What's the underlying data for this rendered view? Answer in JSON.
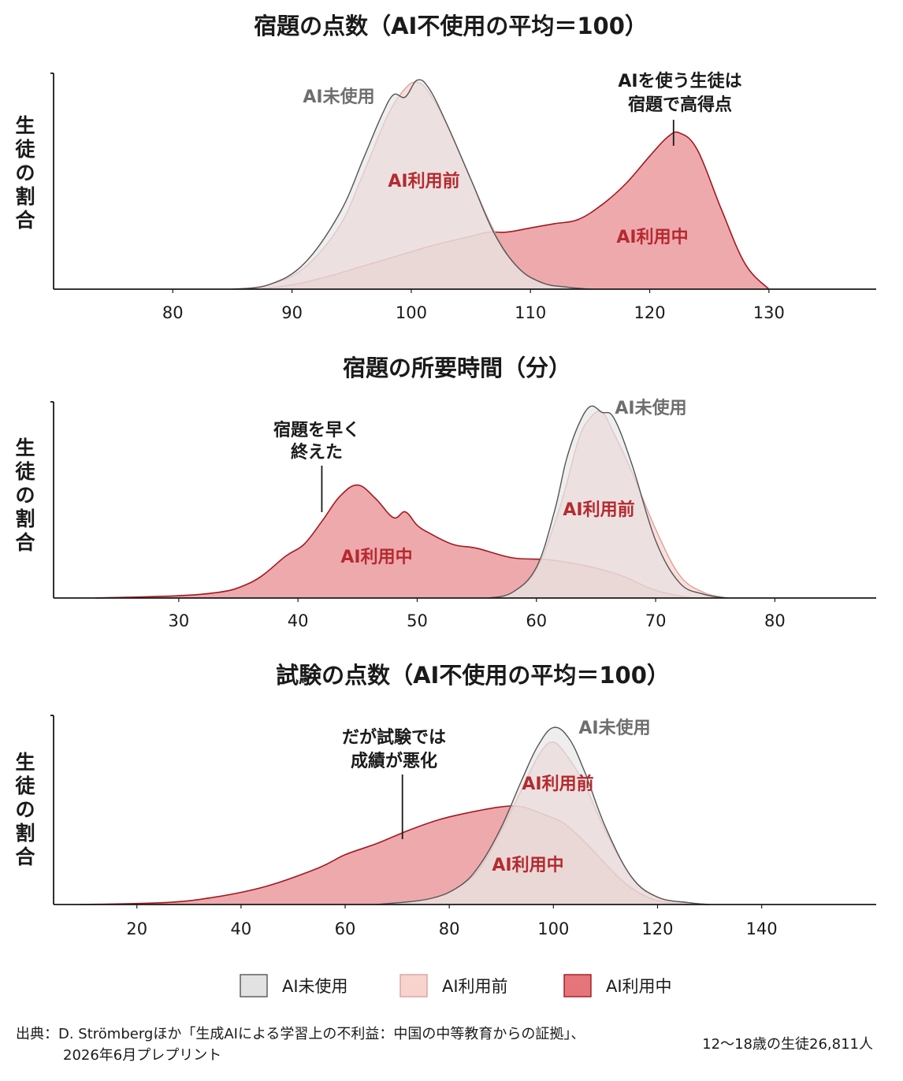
{
  "chart_data": [
    {
      "type": "area",
      "title": "宿題の点数（AI不使用の平均＝100）",
      "ylabel": "生徒の割合",
      "xlim": [
        70,
        139
      ],
      "xticks": [
        80,
        90,
        100,
        110,
        120,
        130
      ],
      "series": [
        {
          "key": "none",
          "name": "AI未使用",
          "label_text": "AI未使用",
          "x": [
            85,
            88,
            91,
            94,
            96,
            97.5,
            98.5,
            99.5,
            100.5,
            101.5,
            103,
            105,
            107,
            109,
            111,
            113,
            115
          ],
          "y": [
            0,
            0.02,
            0.12,
            0.36,
            0.62,
            0.82,
            0.92,
            0.91,
            0.99,
            0.95,
            0.78,
            0.52,
            0.26,
            0.1,
            0.03,
            0.01,
            0
          ]
        },
        {
          "key": "before",
          "name": "AI利用前",
          "label_text": "AI利用前",
          "x": [
            85,
            88,
            91,
            94,
            96,
            98,
            99.5,
            100.5,
            101.5,
            103,
            105,
            107,
            109,
            111,
            113,
            115
          ],
          "y": [
            0,
            0.02,
            0.1,
            0.3,
            0.55,
            0.82,
            0.95,
            0.98,
            0.93,
            0.78,
            0.52,
            0.27,
            0.1,
            0.03,
            0.01,
            0
          ]
        },
        {
          "key": "during",
          "name": "AI利用中",
          "label_text": "AI利用中",
          "x": [
            87,
            90,
            93,
            96,
            99,
            102,
            105,
            106.5,
            108,
            110,
            112,
            114,
            116,
            118,
            120,
            121.5,
            122.5,
            124,
            126,
            128,
            130
          ],
          "y": [
            0,
            0.02,
            0.06,
            0.11,
            0.16,
            0.21,
            0.25,
            0.27,
            0.27,
            0.29,
            0.31,
            0.33,
            0.4,
            0.5,
            0.63,
            0.72,
            0.74,
            0.66,
            0.38,
            0.12,
            0
          ]
        }
      ],
      "annotation": {
        "lines": [
          "AIを使う生徒は",
          "宿題で高得点"
        ],
        "x": 122
      }
    },
    {
      "type": "area",
      "title": "宿題の所要時間（分）",
      "ylabel": "生徒の割合",
      "xlim": [
        19.5,
        88.5
      ],
      "xticks": [
        30,
        40,
        50,
        60,
        70,
        80
      ],
      "series": [
        {
          "key": "none",
          "name": "AI未使用",
          "label_text": "AI未使用",
          "x": [
            56,
            58,
            60,
            61.5,
            62.5,
            63.5,
            64.5,
            65.5,
            66.5,
            68,
            70,
            72,
            74,
            76
          ],
          "y": [
            0,
            0.03,
            0.16,
            0.45,
            0.72,
            0.9,
            1.0,
            0.97,
            0.94,
            0.7,
            0.3,
            0.08,
            0.02,
            0
          ]
        },
        {
          "key": "before",
          "name": "AI利用前",
          "label_text": "AI利用前",
          "x": [
            56,
            58,
            60,
            62,
            63.5,
            64.5,
            65.5,
            66.5,
            68,
            70,
            72,
            74,
            76
          ],
          "y": [
            0,
            0.03,
            0.15,
            0.48,
            0.82,
            0.94,
            0.97,
            0.86,
            0.66,
            0.36,
            0.12,
            0.03,
            0
          ]
        },
        {
          "key": "during",
          "name": "AI利用中",
          "label_text": "AI利用中",
          "x": [
            23,
            32,
            36,
            39,
            40.5,
            42,
            43.5,
            45,
            46.5,
            48,
            49,
            50,
            51,
            53,
            55,
            58,
            61,
            64,
            67,
            70,
            73
          ],
          "y": [
            0,
            0.02,
            0.08,
            0.22,
            0.28,
            0.4,
            0.53,
            0.59,
            0.52,
            0.42,
            0.45,
            0.38,
            0.34,
            0.28,
            0.26,
            0.21,
            0.2,
            0.17,
            0.12,
            0.04,
            0
          ]
        }
      ],
      "annotation": {
        "lines": [
          "宿題を早く",
          "終えた"
        ],
        "x": 42
      }
    },
    {
      "type": "area",
      "title": "試験の点数（AI不使用の平均＝100）",
      "ylabel": "生徒の割合",
      "xlim": [
        4,
        162
      ],
      "xticks": [
        20,
        40,
        60,
        80,
        100,
        120,
        140
      ],
      "series": [
        {
          "key": "none",
          "name": "AI未使用",
          "label_text": "AI未使用",
          "x": [
            66,
            76,
            82,
            86,
            90,
            94,
            97,
            100,
            103,
            106,
            110,
            115,
            120,
            126,
            130
          ],
          "y": [
            0,
            0.03,
            0.1,
            0.22,
            0.42,
            0.68,
            0.86,
            0.96,
            0.9,
            0.72,
            0.42,
            0.15,
            0.04,
            0.01,
            0
          ]
        },
        {
          "key": "before",
          "name": "AI利用前",
          "label_text": "AI利用前",
          "x": [
            66,
            76,
            82,
            86,
            90,
            94,
            97,
            99.5,
            102,
            106,
            110,
            115,
            120,
            126,
            130
          ],
          "y": [
            0,
            0.03,
            0.1,
            0.2,
            0.4,
            0.63,
            0.8,
            0.88,
            0.83,
            0.65,
            0.4,
            0.15,
            0.04,
            0.01,
            0
          ]
        },
        {
          "key": "during",
          "name": "AI利用中",
          "label_text": "AI利用中",
          "x": [
            9,
            25,
            35,
            45,
            55,
            60,
            66,
            72,
            78,
            84,
            90,
            94,
            98,
            102,
            106,
            110,
            114,
            118,
            122,
            126
          ],
          "y": [
            0,
            0.01,
            0.04,
            0.1,
            0.2,
            0.27,
            0.33,
            0.4,
            0.46,
            0.5,
            0.53,
            0.53,
            0.49,
            0.44,
            0.34,
            0.22,
            0.11,
            0.04,
            0.01,
            0
          ]
        }
      ],
      "annotation": {
        "lines": [
          "だが試験では",
          "成績が悪化"
        ],
        "x": 71
      }
    }
  ],
  "legend": [
    {
      "key": "none",
      "label": "AI未使用"
    },
    {
      "key": "before",
      "label": "AI利用前"
    },
    {
      "key": "during",
      "label": "AI利用中"
    }
  ],
  "colors": {
    "none_fill": "#e2e2e2",
    "none_stroke": "#555555",
    "before_fill": "#f8d3ce",
    "before_stroke": "#dca29d",
    "during_fill": "#e3757b",
    "during_stroke": "#a3191f",
    "label_none": "#6e6e6e",
    "label_red": "#b52a2f"
  },
  "footer": {
    "source_line1": "出典：D. Strömbergほか「生成AIによる学習上の不利益：中国の中等教育からの証拠」、",
    "source_line2": "2026年6月プレプリント",
    "sample": "12〜18歳の生徒26,811人"
  }
}
